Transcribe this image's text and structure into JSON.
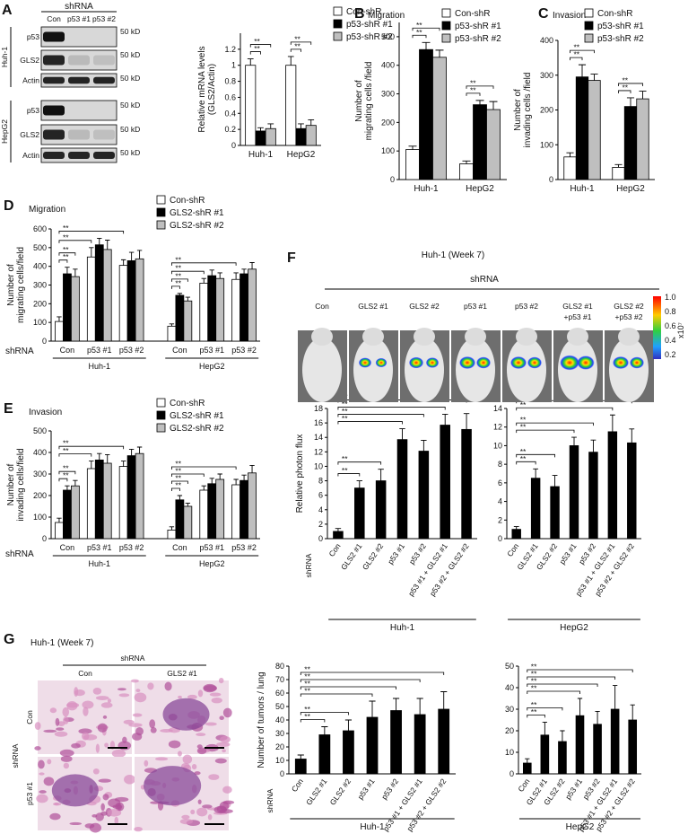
{
  "panel_labels": [
    "A",
    "B",
    "C",
    "D",
    "E",
    "F",
    "G"
  ],
  "blot": {
    "header": "shRNA",
    "lanes": [
      "Con",
      "p53 #1",
      "p53 #2"
    ],
    "sets": [
      {
        "cell_line": "Huh-1",
        "rows": [
          {
            "protein": "p53",
            "size": "50 kD"
          },
          {
            "protein": "GLS2",
            "size": "50 kD"
          },
          {
            "protein": "Actin",
            "size": "50 kD"
          }
        ]
      },
      {
        "cell_line": "HepG2",
        "rows": [
          {
            "protein": "p53",
            "size": "50 kD"
          },
          {
            "protein": "GLS2",
            "size": "50 kD"
          },
          {
            "protein": "Actin",
            "size": "50 kD"
          }
        ]
      }
    ]
  },
  "imaging": {
    "title": "Huh-1 (Week 7)",
    "header": "shRNA",
    "columns": [
      [
        "Con"
      ],
      [
        "GLS2 #1"
      ],
      [
        "GLS2 #2"
      ],
      [
        "p53 #1"
      ],
      [
        "p53 #2"
      ],
      [
        "GLS2 #1",
        "+p53 #1"
      ],
      [
        "GLS2 #2",
        "+p53 #2"
      ]
    ],
    "colorbar": {
      "labels": [
        "1.0",
        "0.8",
        "0.6",
        "0.4",
        "0.2"
      ],
      "unit": "x10⁷"
    }
  },
  "histology": {
    "title": "Huh-1 (Week 7)",
    "header": "shRNA",
    "columns": [
      "Con",
      "GLS2 #1"
    ],
    "row_header": "shRNA",
    "rows": [
      "Con",
      "p53 #1"
    ]
  },
  "chart_data": [
    {
      "type": "bar",
      "ylabel": [
        "Relative mRNA levels",
        "(GLS2/Actin)"
      ],
      "categories": [
        "Huh-1",
        "HepG2"
      ],
      "ylim": [
        0,
        1.4
      ],
      "yticks": [
        0,
        0.2,
        0.4,
        0.6,
        0.8,
        1,
        1.2
      ],
      "series": [
        {
          "name": "Con-shR",
          "color": "#ffffff",
          "values": [
            1.0,
            1.0
          ],
          "errors": [
            0.08,
            0.11
          ]
        },
        {
          "name": "p53-shR #1",
          "color": "#000000",
          "values": [
            0.18,
            0.21
          ],
          "errors": [
            0.04,
            0.06
          ]
        },
        {
          "name": "p53-shR #2",
          "color": "#bfbfbf",
          "values": [
            0.21,
            0.25
          ],
          "errors": [
            0.06,
            0.07
          ]
        }
      ],
      "annotations": [
        "**",
        "**",
        "**",
        "**"
      ]
    },
    {
      "type": "bar",
      "title": "Migration",
      "ylabel": [
        "Number of",
        "migrating cells /field"
      ],
      "categories": [
        "Huh-1",
        "HepG2"
      ],
      "ylim": [
        0,
        550
      ],
      "yticks": [
        0,
        100,
        200,
        300,
        400,
        500
      ],
      "series": [
        {
          "name": "Con-shR",
          "color": "#ffffff",
          "values": [
            105,
            55
          ],
          "errors": [
            12,
            10
          ]
        },
        {
          "name": "p53-shR #1",
          "color": "#000000",
          "values": [
            455,
            262
          ],
          "errors": [
            25,
            15
          ]
        },
        {
          "name": "p53-shR #2",
          "color": "#bfbfbf",
          "values": [
            428,
            245
          ],
          "errors": [
            25,
            28
          ]
        }
      ],
      "annotations": [
        "**",
        "**",
        "**",
        "**"
      ]
    },
    {
      "type": "bar",
      "title": "Invasion",
      "ylabel": [
        "Number of",
        "invading cells /field"
      ],
      "categories": [
        "Huh-1",
        "HepG2"
      ],
      "ylim": [
        0,
        400
      ],
      "yticks": [
        0,
        100,
        200,
        300,
        400
      ],
      "series": [
        {
          "name": "Con-shR",
          "color": "#ffffff",
          "values": [
            65,
            35
          ],
          "errors": [
            12,
            8
          ]
        },
        {
          "name": "p53-shR #1",
          "color": "#000000",
          "values": [
            295,
            210
          ],
          "errors": [
            35,
            25
          ]
        },
        {
          "name": "p53-shR #2",
          "color": "#bfbfbf",
          "values": [
            285,
            232
          ],
          "errors": [
            18,
            22
          ]
        }
      ],
      "annotations": [
        "**",
        "**",
        "**",
        "**"
      ]
    },
    {
      "type": "bar",
      "title": "Migration",
      "ylabel": [
        "Number of",
        "migrating cells/field"
      ],
      "axis_label": "shRNA",
      "categories": [
        "Con",
        "p53 #1",
        "p53 #2",
        "Con",
        "p53 #1",
        "p53 #2"
      ],
      "groups": [
        "Huh-1",
        "HepG2"
      ],
      "ylim": [
        0,
        600
      ],
      "yticks": [
        0,
        100,
        200,
        300,
        400,
        500,
        600
      ],
      "series": [
        {
          "name": "Con-shR",
          "color": "#ffffff",
          "values": [
            105,
            450,
            405,
            80,
            310,
            330
          ],
          "errors": [
            25,
            50,
            30,
            12,
            25,
            35
          ]
        },
        {
          "name": "GLS2-shR #1",
          "color": "#000000",
          "values": [
            360,
            515,
            430,
            245,
            350,
            360
          ],
          "errors": [
            35,
            35,
            45,
            10,
            30,
            25
          ]
        },
        {
          "name": "GLS2-shR #2",
          "color": "#bfbfbf",
          "values": [
            345,
            490,
            440,
            215,
            335,
            385
          ],
          "errors": [
            40,
            50,
            45,
            20,
            30,
            35
          ]
        }
      ],
      "annotations": [
        "**",
        "**",
        "**",
        "**",
        "**",
        "**",
        "**",
        "**"
      ]
    },
    {
      "type": "bar",
      "title": "Invasion",
      "ylabel": [
        "Number of",
        "invading cells/field"
      ],
      "axis_label": "shRNA",
      "categories": [
        "Con",
        "p53 #1",
        "p53 #2",
        "Con",
        "p53 #1",
        "p53 #2"
      ],
      "groups": [
        "Huh-1",
        "HepG2"
      ],
      "ylim": [
        0,
        500
      ],
      "yticks": [
        0,
        100,
        200,
        300,
        400,
        500
      ],
      "series": [
        {
          "name": "Con-shR",
          "color": "#ffffff",
          "values": [
            75,
            325,
            335,
            40,
            225,
            250
          ],
          "errors": [
            20,
            35,
            25,
            15,
            20,
            25
          ]
        },
        {
          "name": "GLS2-shR #1",
          "color": "#000000",
          "values": [
            225,
            365,
            385,
            180,
            255,
            270
          ],
          "errors": [
            20,
            30,
            30,
            20,
            25,
            25
          ]
        },
        {
          "name": "GLS2-shR #2",
          "color": "#bfbfbf",
          "values": [
            245,
            350,
            395,
            150,
            275,
            305
          ],
          "errors": [
            25,
            40,
            30,
            15,
            25,
            35
          ]
        }
      ],
      "annotations": [
        "**",
        "**",
        "**",
        "**",
        "**",
        "**",
        "**",
        "**"
      ]
    },
    {
      "type": "bar",
      "ylabel": [
        "Relative photon flux"
      ],
      "axis_label": "shRNA",
      "categories": [
        "Con",
        "GLS2 #1",
        "GLS2 #2",
        "p53 #1",
        "p53 #2",
        "p53 #1 + GLS2 #1",
        "p53 #2 + GLS2 #2"
      ],
      "groups": [
        "Huh-1"
      ],
      "ylim": [
        0,
        18
      ],
      "yticks": [
        0,
        2,
        4,
        6,
        8,
        10,
        12,
        14,
        16,
        18
      ],
      "color": "#000000",
      "values": [
        1,
        7,
        8,
        13.7,
        12.1,
        15.7,
        15.1
      ],
      "errors": [
        0.4,
        1,
        1.6,
        1.5,
        1.5,
        1.5,
        2.2
      ],
      "annotations": [
        "**",
        "**",
        "**",
        "**",
        "**",
        "**"
      ]
    },
    {
      "type": "bar",
      "categories": [
        "Con",
        "GLS2 #1",
        "GLS2 #2",
        "p53 #1",
        "p53 #2",
        "p53 #1 + GLS2 #1",
        "p53 #2 + GLS2 #2"
      ],
      "groups": [
        "HepG2"
      ],
      "ylim": [
        0,
        14
      ],
      "yticks": [
        0,
        2,
        4,
        6,
        8,
        10,
        12,
        14
      ],
      "color": "#000000",
      "values": [
        1,
        6.5,
        5.6,
        10,
        9.3,
        11.5,
        10.3
      ],
      "errors": [
        0.3,
        1,
        1.2,
        0.9,
        1.3,
        1.8,
        1.5
      ],
      "annotations": [
        "**",
        "**",
        "**",
        "**",
        "**",
        "**"
      ]
    },
    {
      "type": "bar",
      "ylabel": [
        "Number of tumors / lung"
      ],
      "axis_label": "shRNA",
      "categories": [
        "Con",
        "GLS2 #1",
        "GLS2 #2",
        "p53 #1",
        "p53 #2",
        "p53 #1 + GLS2 #1",
        "p53 #2 + GLS2 #2"
      ],
      "groups": [
        "Huh-1"
      ],
      "ylim": [
        0,
        80
      ],
      "yticks": [
        0,
        10,
        20,
        30,
        40,
        50,
        60,
        70,
        80
      ],
      "color": "#000000",
      "values": [
        11,
        29,
        32,
        42,
        47,
        44,
        48
      ],
      "errors": [
        3,
        6,
        8,
        12,
        9,
        12,
        13
      ],
      "annotations": [
        "**",
        "**",
        "**",
        "**",
        "**",
        "**"
      ]
    },
    {
      "type": "bar",
      "categories": [
        "Con",
        "GLS2 #1",
        "GLS2 #2",
        "p53 #1",
        "p53 #2",
        "p53 #1 + GLS2 #1",
        "p53 #2 + GLS2 #2"
      ],
      "groups": [
        "HepG2"
      ],
      "ylim": [
        0,
        50
      ],
      "yticks": [
        0,
        10,
        20,
        30,
        40,
        50
      ],
      "color": "#000000",
      "values": [
        5,
        18,
        15,
        27,
        23,
        30,
        25
      ],
      "errors": [
        2,
        6,
        5,
        8,
        6,
        11,
        7
      ],
      "annotations": [
        "**",
        "**",
        "**",
        "**",
        "**",
        "**"
      ]
    }
  ]
}
